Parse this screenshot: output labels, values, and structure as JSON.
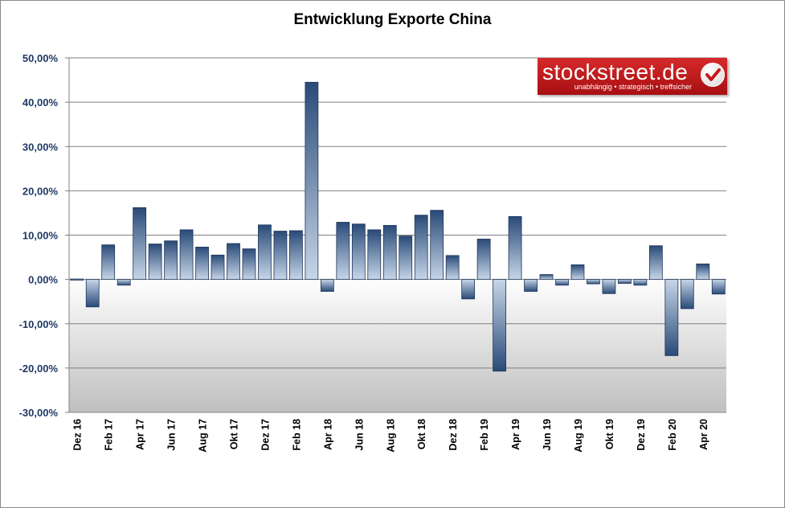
{
  "title": "Entwicklung Exporte China",
  "logo": {
    "name": "stockstreet.de",
    "tagline": "unabhängig • strategisch • treffsicher",
    "check_icon": "checkmark-icon"
  },
  "colors": {
    "bar_dark": "#2c4f7f",
    "bar_light": "#d3e0ee",
    "axis_label": "#1f3864",
    "grid": "#808080",
    "logo_red": "#c8181b"
  },
  "chart_data": {
    "type": "bar",
    "title": "Entwicklung Exporte China",
    "ylim": [
      -30,
      50
    ],
    "yticks": [
      {
        "value": 50,
        "label": "50,00%"
      },
      {
        "value": 40,
        "label": "40,00%"
      },
      {
        "value": 30,
        "label": "30,00%"
      },
      {
        "value": 20,
        "label": "20,00%"
      },
      {
        "value": 10,
        "label": "10,00%"
      },
      {
        "value": 0,
        "label": "0,00%"
      },
      {
        "value": -10,
        "label": "-10,00%"
      },
      {
        "value": -20,
        "label": "-20,00%"
      },
      {
        "value": -30,
        "label": "-30,00%"
      }
    ],
    "categories": [
      "Dez 16",
      "Jan 17",
      "Feb 17",
      "Mär 17",
      "Apr 17",
      "Mai 17",
      "Jun 17",
      "Jul 17",
      "Aug 17",
      "Sep 17",
      "Okt 17",
      "Nov 17",
      "Dez 17",
      "Jan 18",
      "Feb 18",
      "Mär 18",
      "Apr 18",
      "Mai 18",
      "Jun 18",
      "Jul 18",
      "Aug 18",
      "Sep 18",
      "Okt 18",
      "Nov 18",
      "Dez 18",
      "Jan 19",
      "Feb 19",
      "Mär 19",
      "Apr 19",
      "Mai 19",
      "Jun 19",
      "Jul 19",
      "Aug 19",
      "Sep 19",
      "Okt 19",
      "Nov 19",
      "Dez 19",
      "Jan 20",
      "Feb 20",
      "Mär 20",
      "Apr 20",
      "Mai 20"
    ],
    "tick_labels": [
      "Dez 16",
      "",
      "Feb 17",
      "",
      "Apr 17",
      "",
      "Jun 17",
      "",
      "Aug 17",
      "",
      "Okt 17",
      "",
      "Dez 17",
      "",
      "Feb 18",
      "",
      "Apr 18",
      "",
      "Jun 18",
      "",
      "Aug 18",
      "",
      "Okt 18",
      "",
      "Dez 18",
      "",
      "Feb 19",
      "",
      "Apr 19",
      "",
      "Jun 19",
      "",
      "Aug 19",
      "",
      "Okt 19",
      "",
      "Dez 19",
      "",
      "Feb 20",
      "",
      "Apr 20",
      ""
    ],
    "values": [
      0.1,
      -6.2,
      7.8,
      -1.3,
      16.2,
      8.0,
      8.7,
      11.2,
      7.3,
      5.5,
      8.1,
      6.9,
      12.3,
      10.9,
      11.0,
      44.5,
      -2.7,
      12.9,
      12.5,
      11.2,
      12.2,
      9.8,
      14.5,
      15.6,
      5.4,
      -4.4,
      9.1,
      -20.7,
      14.2,
      -2.7,
      1.1,
      -1.3,
      3.3,
      -1.0,
      -3.2,
      -0.9,
      -1.3,
      7.6,
      -17.2,
      -6.6,
      3.5,
      -3.3
    ],
    "xlabel": "",
    "ylabel": "",
    "grid": true
  }
}
